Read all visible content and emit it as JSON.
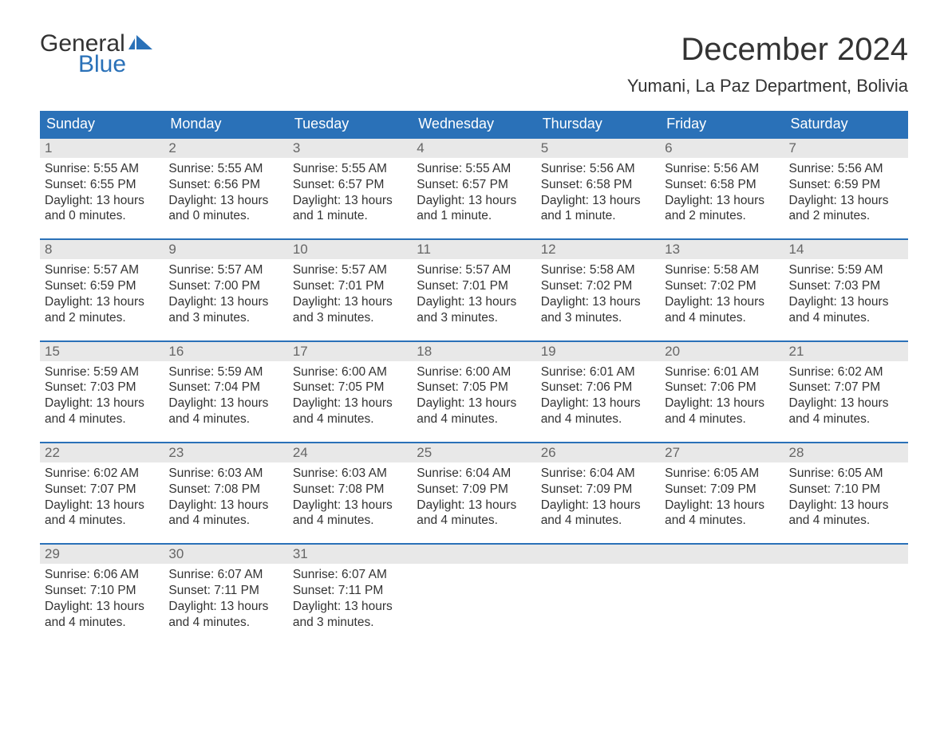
{
  "logo": {
    "line1": "General",
    "line2": "Blue",
    "flag_color": "#2a71b8"
  },
  "title": "December 2024",
  "location": "Yumani, La Paz Department, Bolivia",
  "header_bg": "#2a71b8",
  "daynum_bg": "#e8e8e8",
  "weekdays": [
    "Sunday",
    "Monday",
    "Tuesday",
    "Wednesday",
    "Thursday",
    "Friday",
    "Saturday"
  ],
  "days": [
    {
      "n": 1,
      "sunrise": "5:55 AM",
      "sunset": "6:55 PM",
      "daylight": "13 hours and 0 minutes."
    },
    {
      "n": 2,
      "sunrise": "5:55 AM",
      "sunset": "6:56 PM",
      "daylight": "13 hours and 0 minutes."
    },
    {
      "n": 3,
      "sunrise": "5:55 AM",
      "sunset": "6:57 PM",
      "daylight": "13 hours and 1 minute."
    },
    {
      "n": 4,
      "sunrise": "5:55 AM",
      "sunset": "6:57 PM",
      "daylight": "13 hours and 1 minute."
    },
    {
      "n": 5,
      "sunrise": "5:56 AM",
      "sunset": "6:58 PM",
      "daylight": "13 hours and 1 minute."
    },
    {
      "n": 6,
      "sunrise": "5:56 AM",
      "sunset": "6:58 PM",
      "daylight": "13 hours and 2 minutes."
    },
    {
      "n": 7,
      "sunrise": "5:56 AM",
      "sunset": "6:59 PM",
      "daylight": "13 hours and 2 minutes."
    },
    {
      "n": 8,
      "sunrise": "5:57 AM",
      "sunset": "6:59 PM",
      "daylight": "13 hours and 2 minutes."
    },
    {
      "n": 9,
      "sunrise": "5:57 AM",
      "sunset": "7:00 PM",
      "daylight": "13 hours and 3 minutes."
    },
    {
      "n": 10,
      "sunrise": "5:57 AM",
      "sunset": "7:01 PM",
      "daylight": "13 hours and 3 minutes."
    },
    {
      "n": 11,
      "sunrise": "5:57 AM",
      "sunset": "7:01 PM",
      "daylight": "13 hours and 3 minutes."
    },
    {
      "n": 12,
      "sunrise": "5:58 AM",
      "sunset": "7:02 PM",
      "daylight": "13 hours and 3 minutes."
    },
    {
      "n": 13,
      "sunrise": "5:58 AM",
      "sunset": "7:02 PM",
      "daylight": "13 hours and 4 minutes."
    },
    {
      "n": 14,
      "sunrise": "5:59 AM",
      "sunset": "7:03 PM",
      "daylight": "13 hours and 4 minutes."
    },
    {
      "n": 15,
      "sunrise": "5:59 AM",
      "sunset": "7:03 PM",
      "daylight": "13 hours and 4 minutes."
    },
    {
      "n": 16,
      "sunrise": "5:59 AM",
      "sunset": "7:04 PM",
      "daylight": "13 hours and 4 minutes."
    },
    {
      "n": 17,
      "sunrise": "6:00 AM",
      "sunset": "7:05 PM",
      "daylight": "13 hours and 4 minutes."
    },
    {
      "n": 18,
      "sunrise": "6:00 AM",
      "sunset": "7:05 PM",
      "daylight": "13 hours and 4 minutes."
    },
    {
      "n": 19,
      "sunrise": "6:01 AM",
      "sunset": "7:06 PM",
      "daylight": "13 hours and 4 minutes."
    },
    {
      "n": 20,
      "sunrise": "6:01 AM",
      "sunset": "7:06 PM",
      "daylight": "13 hours and 4 minutes."
    },
    {
      "n": 21,
      "sunrise": "6:02 AM",
      "sunset": "7:07 PM",
      "daylight": "13 hours and 4 minutes."
    },
    {
      "n": 22,
      "sunrise": "6:02 AM",
      "sunset": "7:07 PM",
      "daylight": "13 hours and 4 minutes."
    },
    {
      "n": 23,
      "sunrise": "6:03 AM",
      "sunset": "7:08 PM",
      "daylight": "13 hours and 4 minutes."
    },
    {
      "n": 24,
      "sunrise": "6:03 AM",
      "sunset": "7:08 PM",
      "daylight": "13 hours and 4 minutes."
    },
    {
      "n": 25,
      "sunrise": "6:04 AM",
      "sunset": "7:09 PM",
      "daylight": "13 hours and 4 minutes."
    },
    {
      "n": 26,
      "sunrise": "6:04 AM",
      "sunset": "7:09 PM",
      "daylight": "13 hours and 4 minutes."
    },
    {
      "n": 27,
      "sunrise": "6:05 AM",
      "sunset": "7:09 PM",
      "daylight": "13 hours and 4 minutes."
    },
    {
      "n": 28,
      "sunrise": "6:05 AM",
      "sunset": "7:10 PM",
      "daylight": "13 hours and 4 minutes."
    },
    {
      "n": 29,
      "sunrise": "6:06 AM",
      "sunset": "7:10 PM",
      "daylight": "13 hours and 4 minutes."
    },
    {
      "n": 30,
      "sunrise": "6:07 AM",
      "sunset": "7:11 PM",
      "daylight": "13 hours and 4 minutes."
    },
    {
      "n": 31,
      "sunrise": "6:07 AM",
      "sunset": "7:11 PM",
      "daylight": "13 hours and 3 minutes."
    }
  ],
  "labels": {
    "sunrise": "Sunrise: ",
    "sunset": "Sunset: ",
    "daylight": "Daylight: "
  },
  "start_weekday_index": 0,
  "trailing_empty": 4
}
